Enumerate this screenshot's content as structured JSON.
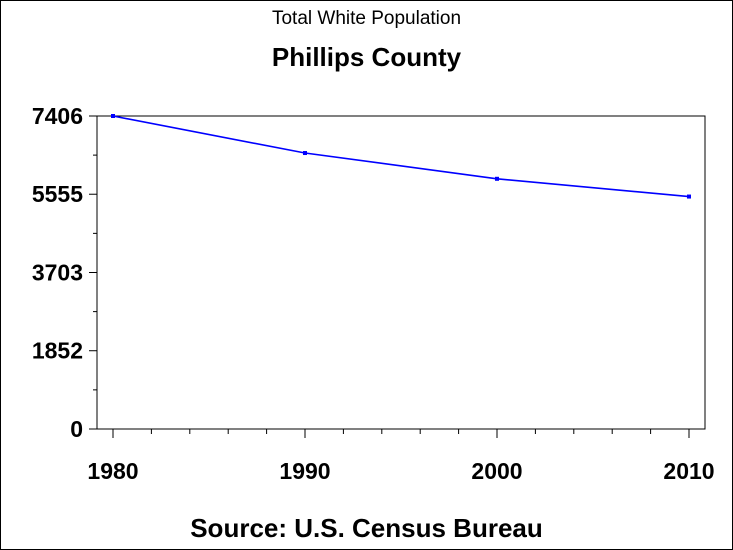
{
  "chart_data": {
    "type": "line",
    "subtitle": "Total White Population",
    "title": "Phillips County",
    "footnote": "Source: U.S. Census Bureau",
    "x": [
      1980,
      1990,
      2000,
      2010
    ],
    "series": [
      {
        "values": [
          7406,
          6530,
          5920,
          5500
        ],
        "color": "#0000ff"
      }
    ],
    "xlim": [
      1980,
      2010
    ],
    "ylim": [
      0,
      7406
    ],
    "x_ticks": [
      "1980",
      "1990",
      "2000",
      "2010"
    ],
    "y_ticks": [
      "0",
      "1852",
      "3703",
      "5555",
      "7406"
    ],
    "grid": false,
    "legend": "none"
  }
}
